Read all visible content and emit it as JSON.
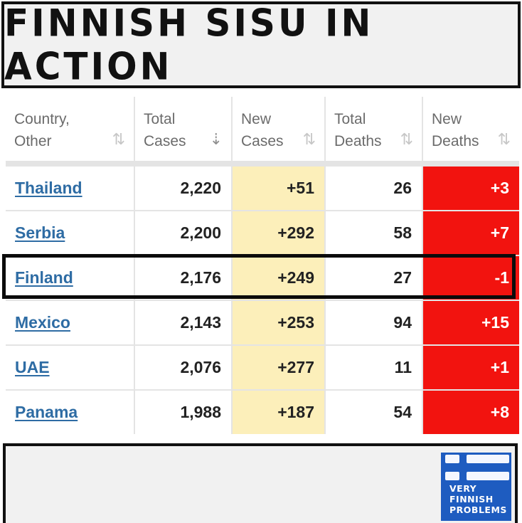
{
  "title": "FINNISH SISU IN ACTION",
  "columns": [
    {
      "label_line1": "Country,",
      "label_line2": "Other",
      "sort_icon": "sort-arrows-icon"
    },
    {
      "label_line1": "Total",
      "label_line2": "Cases",
      "sort_icon": "sort-descending-icon"
    },
    {
      "label_line1": "New",
      "label_line2": "Cases",
      "sort_icon": "sort-arrows-icon"
    },
    {
      "label_line1": "Total",
      "label_line2": "Deaths",
      "sort_icon": "sort-arrows-icon"
    },
    {
      "label_line1": "New",
      "label_line2": "Deaths",
      "sort_icon": "sort-arrows-icon"
    }
  ],
  "rows": [
    {
      "country": "Thailand",
      "total_cases": "2,220",
      "new_cases": "+51",
      "total_deaths": "26",
      "new_deaths": "+3"
    },
    {
      "country": "Serbia",
      "total_cases": "2,200",
      "new_cases": "+292",
      "total_deaths": "58",
      "new_deaths": "+7"
    },
    {
      "country": "Finland",
      "total_cases": "2,176",
      "new_cases": "+249",
      "total_deaths": "27",
      "new_deaths": "-1"
    },
    {
      "country": "Mexico",
      "total_cases": "2,143",
      "new_cases": "+253",
      "total_deaths": "94",
      "new_deaths": "+15"
    },
    {
      "country": "UAE",
      "total_cases": "2,076",
      "new_cases": "+277",
      "total_deaths": "11",
      "new_deaths": "+1"
    },
    {
      "country": "Panama",
      "total_cases": "1,988",
      "new_cases": "+187",
      "total_deaths": "54",
      "new_deaths": "+8"
    }
  ],
  "highlighted_country": "Finland",
  "colors": {
    "new_cases_bg": "#fcefba",
    "new_deaths_bg": "#f2130f",
    "link": "#2e6ca4",
    "logo_bg": "#1e5cc0"
  },
  "logo": {
    "line1": "VERY",
    "line2": "FINNISH",
    "line3": "PROBLEMS",
    "icon": "finnish-flag-icon"
  }
}
